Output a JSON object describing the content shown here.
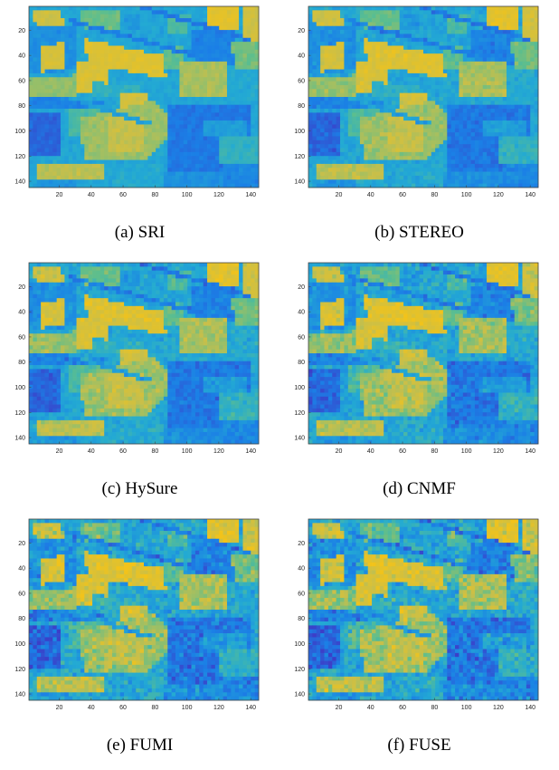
{
  "chart_data": [
    {
      "type": "heatmap",
      "caption": "(a) SRI",
      "noise": 0.06,
      "xticks": [
        20,
        40,
        60,
        80,
        100,
        120,
        140
      ],
      "yticks": [
        20,
        40,
        60,
        80,
        100,
        120,
        140
      ],
      "xlim": [
        1,
        145
      ],
      "ylim": [
        1,
        145
      ],
      "colormap": [
        "#3c3ec8",
        "#1b7fe6",
        "#23aad3",
        "#5cbe8e",
        "#c8bf4a",
        "#f2c31a"
      ]
    },
    {
      "type": "heatmap",
      "caption": "(b) STEREO",
      "noise": 0.1,
      "xticks": [
        20,
        40,
        60,
        80,
        100,
        120,
        140
      ],
      "yticks": [
        20,
        40,
        60,
        80,
        100,
        120,
        140
      ],
      "xlim": [
        1,
        145
      ],
      "ylim": [
        1,
        145
      ],
      "colormap": [
        "#3c3ec8",
        "#1b7fe6",
        "#23aad3",
        "#5cbe8e",
        "#c8bf4a",
        "#f2c31a"
      ]
    },
    {
      "type": "heatmap",
      "caption": "(c) HySure",
      "noise": 0.12,
      "xticks": [
        20,
        40,
        60,
        80,
        100,
        120,
        140
      ],
      "yticks": [
        20,
        40,
        60,
        80,
        100,
        120,
        140
      ],
      "xlim": [
        1,
        145
      ],
      "ylim": [
        1,
        145
      ],
      "colormap": [
        "#3c3ec8",
        "#1b7fe6",
        "#23aad3",
        "#5cbe8e",
        "#c8bf4a",
        "#f2c31a"
      ]
    },
    {
      "type": "heatmap",
      "caption": "(d) CNMF",
      "noise": 0.16,
      "xticks": [
        20,
        40,
        60,
        80,
        100,
        120,
        140
      ],
      "yticks": [
        20,
        40,
        60,
        80,
        100,
        120,
        140
      ],
      "xlim": [
        1,
        145
      ],
      "ylim": [
        1,
        145
      ],
      "colormap": [
        "#3c3ec8",
        "#1b7fe6",
        "#23aad3",
        "#5cbe8e",
        "#c8bf4a",
        "#f2c31a"
      ]
    },
    {
      "type": "heatmap",
      "caption": "(e) FUMI",
      "noise": 0.2,
      "xticks": [
        20,
        40,
        60,
        80,
        100,
        120,
        140
      ],
      "yticks": [
        20,
        40,
        60,
        80,
        100,
        120,
        140
      ],
      "xlim": [
        1,
        145
      ],
      "ylim": [
        1,
        145
      ],
      "colormap": [
        "#3c3ec8",
        "#1b7fe6",
        "#23aad3",
        "#5cbe8e",
        "#c8bf4a",
        "#f2c31a"
      ]
    },
    {
      "type": "heatmap",
      "caption": "(f) FUSE",
      "noise": 0.22,
      "xticks": [
        20,
        40,
        60,
        80,
        100,
        120,
        140
      ],
      "yticks": [
        20,
        40,
        60,
        80,
        100,
        120,
        140
      ],
      "xlim": [
        1,
        145
      ],
      "ylim": [
        1,
        145
      ],
      "colormap": [
        "#3c3ec8",
        "#1b7fe6",
        "#23aad3",
        "#5cbe8e",
        "#c8bf4a",
        "#f2c31a"
      ]
    }
  ]
}
